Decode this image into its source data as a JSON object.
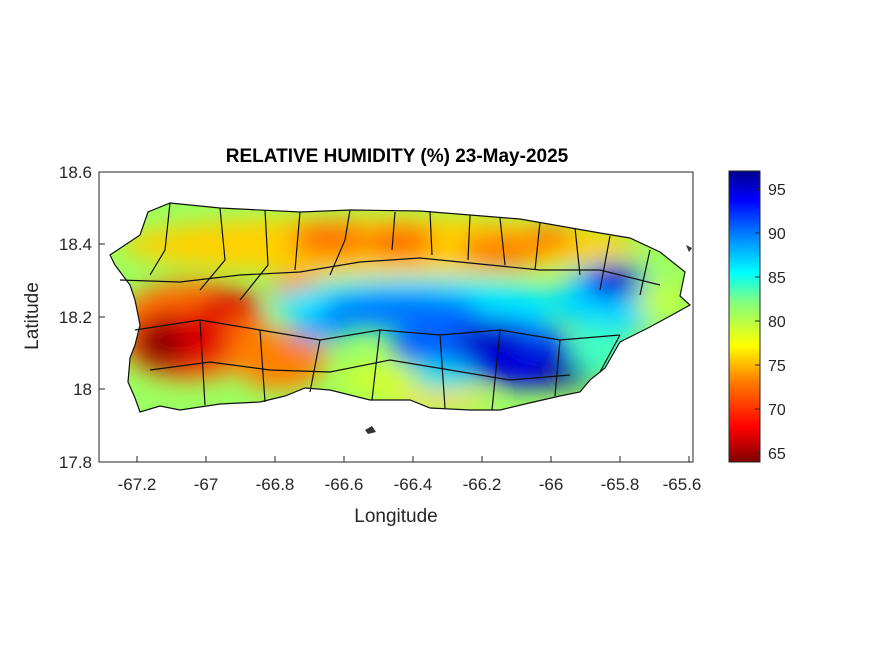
{
  "map": {
    "title": "RELATIVE HUMIDITY (%) 23-May-2025",
    "xlabel": "Longitude",
    "ylabel": "Latitude",
    "xlim": [
      -67.3,
      -65.58
    ],
    "ylim": [
      17.8,
      18.6
    ],
    "xticks": [
      "-67.2",
      "-67",
      "-66.8",
      "-66.6",
      "-66.4",
      "-66.2",
      "-66",
      "-65.8",
      "-65.6"
    ],
    "yticks": [
      "18.6",
      "18.4",
      "18.2",
      "18",
      "17.8"
    ],
    "colorbar": {
      "ticks": [
        "95",
        "90",
        "85",
        "80",
        "75",
        "70",
        "65"
      ],
      "range": [
        64,
        97
      ],
      "colormap": "jet",
      "colors": [
        "#800000",
        "#ff0000",
        "#ff8000",
        "#ffff00",
        "#80ff80",
        "#00ffff",
        "#0080ff",
        "#0000ff",
        "#00008f"
      ]
    },
    "region": "Puerto Rico"
  }
}
